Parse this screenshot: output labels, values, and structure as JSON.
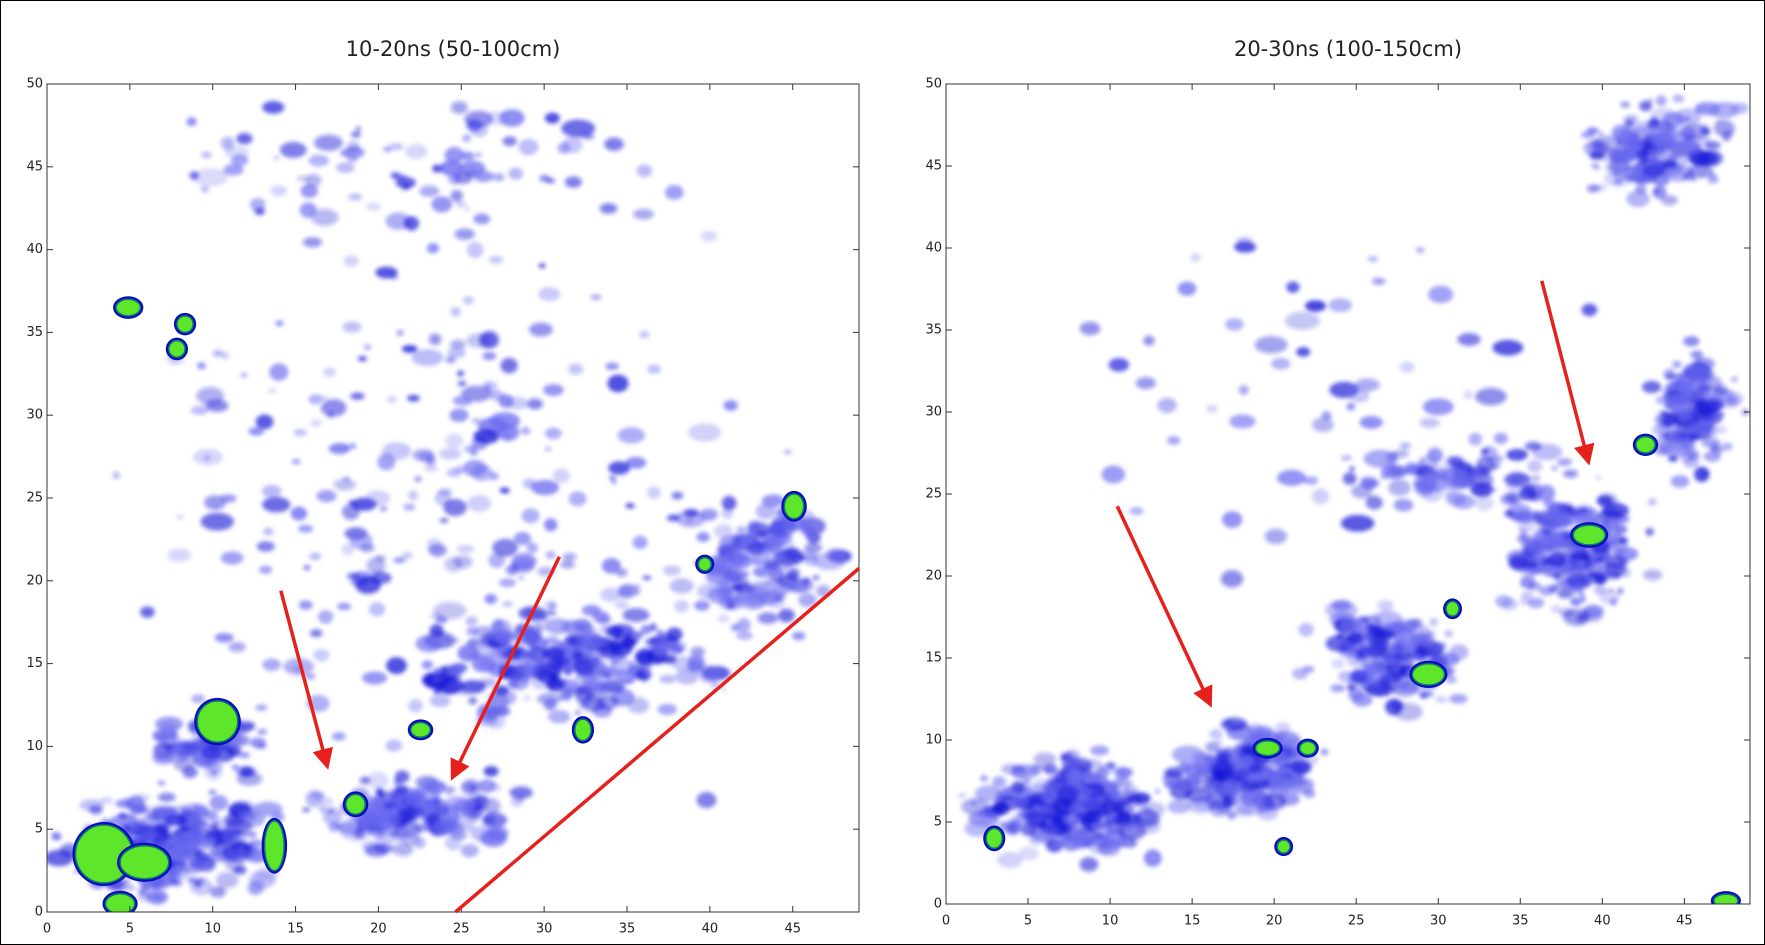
{
  "chart_data": [
    {
      "type": "heatmap",
      "title": "10-20ns (50-100cm)",
      "xlim": [
        0,
        49
      ],
      "ylim": [
        0,
        50
      ],
      "xticks": [
        0,
        5,
        10,
        15,
        20,
        25,
        30,
        35,
        40,
        45
      ],
      "yticks": [
        0,
        5,
        10,
        15,
        20,
        25,
        30,
        35,
        40,
        45,
        50
      ]
    },
    {
      "type": "heatmap",
      "title": "20-30ns (100-150cm)",
      "xlim": [
        0,
        49
      ],
      "ylim": [
        0,
        50
      ],
      "xticks": [
        0,
        5,
        10,
        15,
        20,
        25,
        30,
        35,
        40,
        45
      ],
      "yticks": [
        0,
        5,
        10,
        15,
        20,
        25,
        30,
        35,
        40,
        45,
        50
      ]
    }
  ]
}
